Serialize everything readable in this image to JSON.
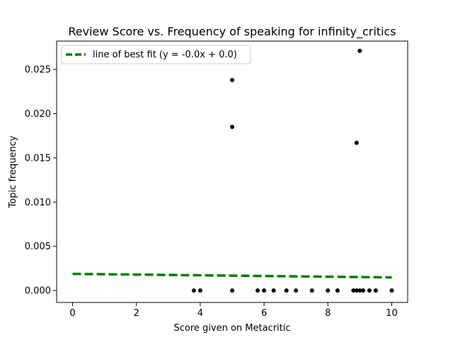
{
  "chart_data": {
    "type": "scatter",
    "title": "Review Score vs. Frequency of speaking for infinity_critics",
    "xlabel": "Score given on Metacritic",
    "ylabel": "Topic frequency",
    "xlim": [
      -0.5,
      10.5
    ],
    "ylim": [
      -0.00135,
      0.0282
    ],
    "xticks": [
      0,
      2,
      4,
      6,
      8,
      10
    ],
    "xtick_labels": [
      "0",
      "2",
      "4",
      "6",
      "8",
      "10"
    ],
    "yticks": [
      0.0,
      0.005,
      0.01,
      0.015,
      0.02,
      0.025
    ],
    "ytick_labels": [
      "0.000",
      "0.005",
      "0.010",
      "0.015",
      "0.020",
      "0.025"
    ],
    "grid": false,
    "legend": {
      "position": "upper-left",
      "entries": [
        "line of best fit (y = -0.0x + 0.0)"
      ]
    },
    "series": [
      {
        "kind": "points",
        "color": "#000000",
        "points": [
          [
            3.8,
            0.0
          ],
          [
            4.0,
            0.0
          ],
          [
            5.0,
            0.0
          ],
          [
            5.0,
            0.0185
          ],
          [
            5.0,
            0.0238
          ],
          [
            5.8,
            0.0
          ],
          [
            6.0,
            0.0
          ],
          [
            6.3,
            0.0
          ],
          [
            6.7,
            0.0
          ],
          [
            7.0,
            0.0
          ],
          [
            7.5,
            0.0
          ],
          [
            8.0,
            0.0
          ],
          [
            8.3,
            0.0
          ],
          [
            8.8,
            0.0
          ],
          [
            8.9,
            0.0
          ],
          [
            8.9,
            0.0167
          ],
          [
            9.0,
            0.0
          ],
          [
            9.0,
            0.0271
          ],
          [
            9.1,
            0.0
          ],
          [
            9.3,
            0.0
          ],
          [
            9.5,
            0.0
          ],
          [
            10.0,
            0.0
          ]
        ]
      },
      {
        "kind": "line",
        "name": "line of best fit (y = -0.0x + 0.0)",
        "color": "#008000",
        "dashed": true,
        "x": [
          0,
          10
        ],
        "y": [
          0.00188,
          0.00148
        ]
      }
    ]
  }
}
